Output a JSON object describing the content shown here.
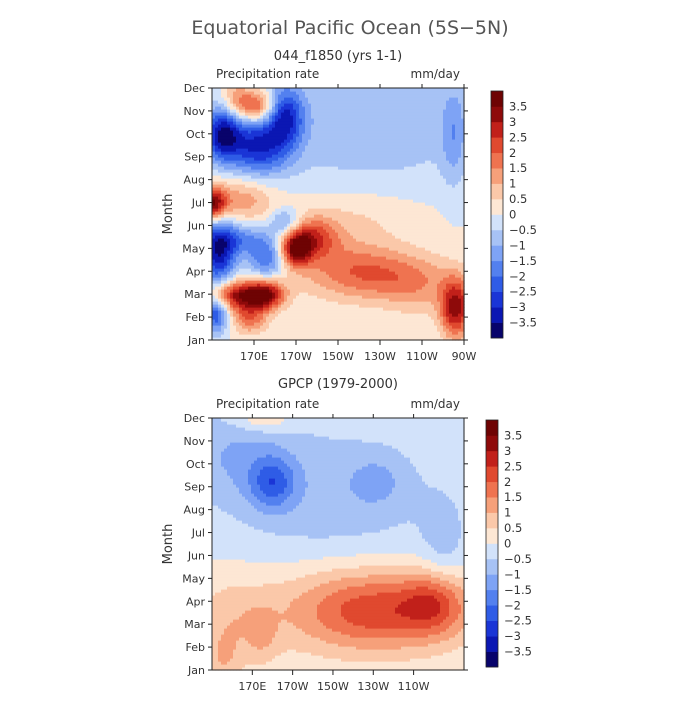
{
  "figure": {
    "title": "Equatorial Pacific Ocean (5S−5N)"
  },
  "chart_data": [
    {
      "type": "heatmap",
      "title": "044_f1850 (yrs 1-1)",
      "variable": "Precipitation rate",
      "units": "mm/day",
      "ylabel": "Month",
      "xlabel": "",
      "x_ticks": [
        "170E",
        "170W",
        "150W",
        "130W",
        "110W",
        "90W"
      ],
      "x_tick_lon": [
        170,
        190,
        210,
        230,
        250,
        270
      ],
      "x_range_lon": [
        150,
        270
      ],
      "y_ticks": [
        "Jan",
        "Feb",
        "Mar",
        "Apr",
        "May",
        "Jun",
        "Jul",
        "Aug",
        "Sep",
        "Oct",
        "Nov",
        "Dec"
      ],
      "colorbar_ticks": [
        "3.5",
        "3",
        "2.5",
        "2",
        "1.5",
        "1",
        "0.5",
        "0",
        "−0.5",
        "−1",
        "−1.5",
        "−2",
        "−2.5",
        "−3",
        "−3.5"
      ],
      "grid": false,
      "blobs": [
        {
          "lon": 152,
          "m": 1.2,
          "sx": 4,
          "sy": 0.6,
          "a": -2.5
        },
        {
          "lon": 168,
          "m": 1.0,
          "sx": 6,
          "sy": 0.5,
          "a": 1.8
        },
        {
          "lon": 162,
          "m": 2.0,
          "sx": 10,
          "sy": 0.45,
          "a": 3.2
        },
        {
          "lon": 176,
          "m": 2.0,
          "sx": 6,
          "sy": 0.45,
          "a": 2.8
        },
        {
          "lon": 153,
          "m": 3.8,
          "sx": 6,
          "sy": 1.0,
          "a": -3.2
        },
        {
          "lon": 176,
          "m": 3.5,
          "sx": 6,
          "sy": 0.6,
          "a": -2.0
        },
        {
          "lon": 190,
          "m": 4.0,
          "sx": 5,
          "sy": 0.5,
          "a": 3.2
        },
        {
          "lon": 198,
          "m": 4.5,
          "sx": 8,
          "sy": 0.6,
          "a": 2.0
        },
        {
          "lon": 210,
          "m": 3.5,
          "sx": 20,
          "sy": 1.0,
          "a": 1.0
        },
        {
          "lon": 230,
          "m": 2.8,
          "sx": 20,
          "sy": 0.8,
          "a": 1.5
        },
        {
          "lon": 250,
          "m": 2.2,
          "sx": 12,
          "sy": 0.9,
          "a": 0.7
        },
        {
          "lon": 266,
          "m": 1.4,
          "sx": 5,
          "sy": 0.9,
          "a": 3.2
        },
        {
          "lon": 150,
          "m": 6.0,
          "sx": 5,
          "sy": 0.5,
          "a": 3.5
        },
        {
          "lon": 165,
          "m": 6.2,
          "sx": 10,
          "sy": 0.7,
          "a": 1.3
        },
        {
          "lon": 185,
          "m": 5.2,
          "sx": 5,
          "sy": 0.4,
          "a": -1.5
        },
        {
          "lon": 165,
          "m": 4.4,
          "sx": 12,
          "sy": 0.5,
          "a": -1.5
        },
        {
          "lon": 215,
          "m": 5.5,
          "sx": 25,
          "sy": 0.8,
          "a": 0.5
        },
        {
          "lon": 155,
          "m": 9.0,
          "sx": 6,
          "sy": 0.8,
          "a": -3.2
        },
        {
          "lon": 172,
          "m": 8.5,
          "sx": 10,
          "sy": 0.9,
          "a": -2.8
        },
        {
          "lon": 185,
          "m": 9.8,
          "sx": 6,
          "sy": 0.9,
          "a": -2.5
        },
        {
          "lon": 225,
          "m": 9.5,
          "sx": 40,
          "sy": 2.0,
          "a": -0.9
        },
        {
          "lon": 172,
          "m": 10.2,
          "sx": 6,
          "sy": 0.5,
          "a": 2.5
        },
        {
          "lon": 162,
          "m": 10.5,
          "sx": 5,
          "sy": 0.6,
          "a": 1.5
        },
        {
          "lon": 265,
          "m": 9.0,
          "sx": 4,
          "sy": 1.5,
          "a": -1.0
        }
      ]
    },
    {
      "type": "heatmap",
      "title": "GPCP (1979-2000)",
      "variable": "Precipitation rate",
      "units": "mm/day",
      "ylabel": "Month",
      "xlabel": "",
      "x_ticks": [
        "170E",
        "170W",
        "150W",
        "130W",
        "110W"
      ],
      "x_tick_lon": [
        170,
        190,
        210,
        230,
        250
      ],
      "x_range_lon": [
        150,
        275
      ],
      "y_ticks": [
        "Jan",
        "Feb",
        "Mar",
        "Apr",
        "May",
        "Jun",
        "Jul",
        "Aug",
        "Sep",
        "Oct",
        "Nov",
        "Dec"
      ],
      "colorbar_ticks": [
        "3.5",
        "3",
        "2.5",
        "2",
        "1.5",
        "1",
        "0.5",
        "0",
        "−0.5",
        "−1",
        "−1.5",
        "−2",
        "−2.5",
        "−3",
        "−3.5"
      ],
      "grid": false,
      "blobs": [
        {
          "lon": 240,
          "m": 2.6,
          "sx": 30,
          "sy": 1.2,
          "a": 1.8
        },
        {
          "lon": 215,
          "m": 2.8,
          "sx": 30,
          "sy": 1.5,
          "a": 0.9
        },
        {
          "lon": 160,
          "m": 2.0,
          "sx": 15,
          "sy": 1.5,
          "a": 0.8
        },
        {
          "lon": 260,
          "m": 3.0,
          "sx": 10,
          "sy": 0.9,
          "a": 1.2
        },
        {
          "lon": 265,
          "m": 5.5,
          "sx": 8,
          "sy": 1.5,
          "a": -0.6
        },
        {
          "lon": 210,
          "m": 7.5,
          "sx": 40,
          "sy": 2.5,
          "a": -0.8
        },
        {
          "lon": 180,
          "m": 8.2,
          "sx": 8,
          "sy": 0.8,
          "a": -1.6
        },
        {
          "lon": 232,
          "m": 8.3,
          "sx": 10,
          "sy": 0.8,
          "a": -0.6
        },
        {
          "lon": 160,
          "m": 9.5,
          "sx": 20,
          "sy": 1.5,
          "a": -0.8
        },
        {
          "lon": 175,
          "m": 11.0,
          "sx": 10,
          "sy": 0.4,
          "a": 0.9
        },
        {
          "lon": 156,
          "m": 0.5,
          "sx": 5,
          "sy": 0.7,
          "a": 0.6
        },
        {
          "lon": 175,
          "m": 1.5,
          "sx": 5,
          "sy": 0.8,
          "a": 0.5
        }
      ]
    }
  ],
  "palette": [
    "#08036b",
    "#0b17b3",
    "#1a35d6",
    "#2f5ce6",
    "#5380ef",
    "#7ea3f5",
    "#a7c2f5",
    "#d2e2fa",
    "#fde7d4",
    "#fbc8a9",
    "#f6a07a",
    "#ef7350",
    "#e0492f",
    "#c1201a",
    "#8e0a0a",
    "#6e0303"
  ]
}
